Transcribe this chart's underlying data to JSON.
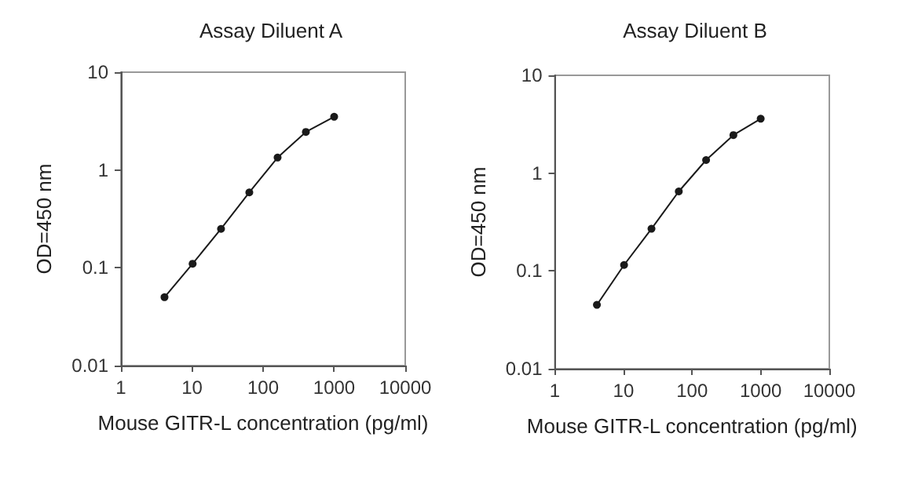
{
  "chart_data": [
    {
      "type": "line",
      "title": "Assay Diluent A",
      "xlabel": "Mouse GITR-L concentration (pg/ml)",
      "ylabel": "OD=450 nm",
      "log": "xy",
      "x": [
        4.1,
        10.2,
        25.6,
        64,
        160,
        400,
        1000
      ],
      "series": [
        {
          "color": "#1a1a1a",
          "values": [
            0.05,
            0.11,
            0.25,
            0.59,
            1.34,
            2.45,
            3.5
          ]
        }
      ],
      "xlim": [
        1,
        10000
      ],
      "xticks": [
        1,
        10,
        100,
        1000,
        10000
      ],
      "ylim": [
        0.01,
        10
      ],
      "yticks": [
        0.01,
        0.1,
        1,
        10
      ],
      "marker": "circle",
      "line_style": "solid",
      "grid": false
    },
    {
      "type": "line",
      "title": "Assay Diluent B",
      "xlabel": "Mouse GITR-L concentration (pg/ml)",
      "ylabel": "OD=450 nm",
      "log": "xy",
      "x": [
        4.1,
        10.2,
        25.6,
        64,
        160,
        400,
        1000
      ],
      "series": [
        {
          "color": "#1a1a1a",
          "values": [
            0.045,
            0.115,
            0.27,
            0.65,
            1.36,
            2.45,
            3.6
          ]
        }
      ],
      "xlim": [
        1,
        10000
      ],
      "xticks": [
        1,
        10,
        100,
        1000,
        10000
      ],
      "ylim": [
        0.01,
        10
      ],
      "yticks": [
        0.01,
        0.1,
        1,
        10
      ],
      "marker": "circle",
      "line_style": "solid",
      "grid": false
    }
  ]
}
